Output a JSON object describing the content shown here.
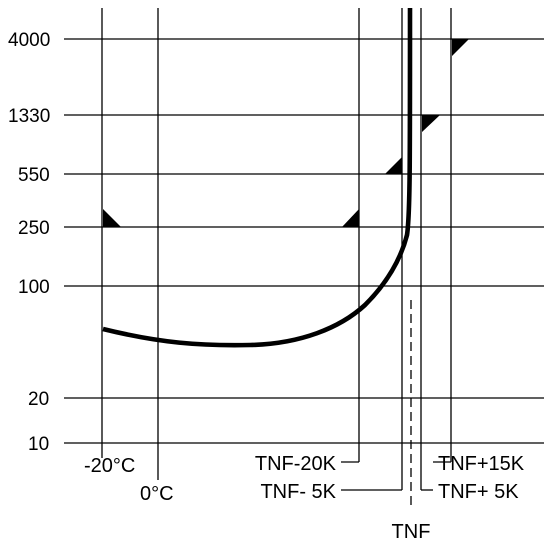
{
  "y_ticks": [
    "4000",
    "1330",
    "550",
    "250",
    "100",
    "20",
    "10"
  ],
  "x_labels": {
    "minus20": "-20°C",
    "zero": "0°C",
    "tnf_minus20k": "TNF-20K",
    "tnf_minus5k": "TNF- 5K",
    "tnf": "TNF",
    "tnf_plus5k": "TNF+ 5K",
    "tnf_plus15k": "TNF+15K"
  },
  "colors": {
    "line": "#000000",
    "background": "#ffffff"
  }
}
